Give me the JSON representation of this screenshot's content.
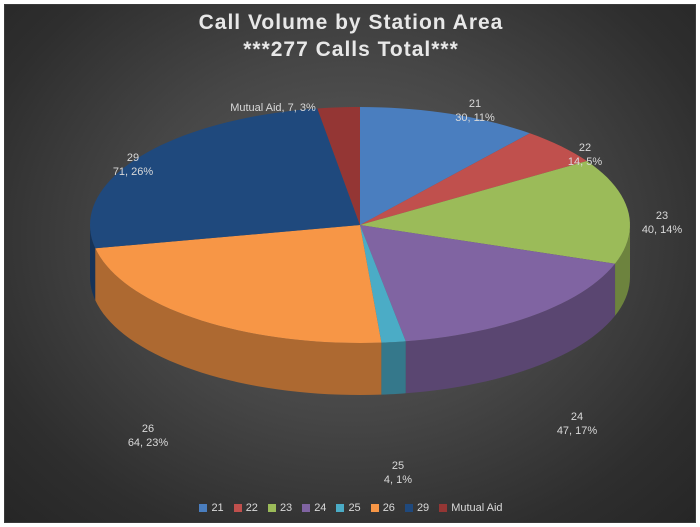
{
  "chart_data": {
    "type": "pie",
    "title": "Call Volume by Station Area",
    "subtitle": "***277 Calls Total***",
    "slices": [
      {
        "label": "21",
        "value": 30,
        "percent": "11%",
        "color": "#4a7ebf",
        "data_label_line1": "21",
        "data_label_line2": "30, 11%"
      },
      {
        "label": "22",
        "value": 14,
        "percent": "5%",
        "color": "#c0504d",
        "data_label_line1": "22",
        "data_label_line2": "14, 5%"
      },
      {
        "label": "23",
        "value": 40,
        "percent": "14%",
        "color": "#9bbb59",
        "data_label_line1": "23",
        "data_label_line2": "40, 14%"
      },
      {
        "label": "24",
        "value": 47,
        "percent": "17%",
        "color": "#8064a2",
        "data_label_line1": "24",
        "data_label_line2": "47, 17%"
      },
      {
        "label": "25",
        "value": 4,
        "percent": "1%",
        "color": "#4bacc6",
        "data_label_line1": "25",
        "data_label_line2": "4, 1%"
      },
      {
        "label": "26",
        "value": 64,
        "percent": "23%",
        "color": "#f79646",
        "data_label_line1": "26",
        "data_label_line2": "64, 23%"
      },
      {
        "label": "29",
        "value": 71,
        "percent": "26%",
        "color": "#1f497d",
        "data_label_line1": "29",
        "data_label_line2": "71, 26%"
      },
      {
        "label": "Mutual Aid",
        "value": 7,
        "percent": "3%",
        "color": "#943634",
        "data_label_line1": "Mutual Aid, 7, 3%",
        "data_label_line2": ""
      }
    ],
    "legend_position": "bottom",
    "three_d": true
  }
}
